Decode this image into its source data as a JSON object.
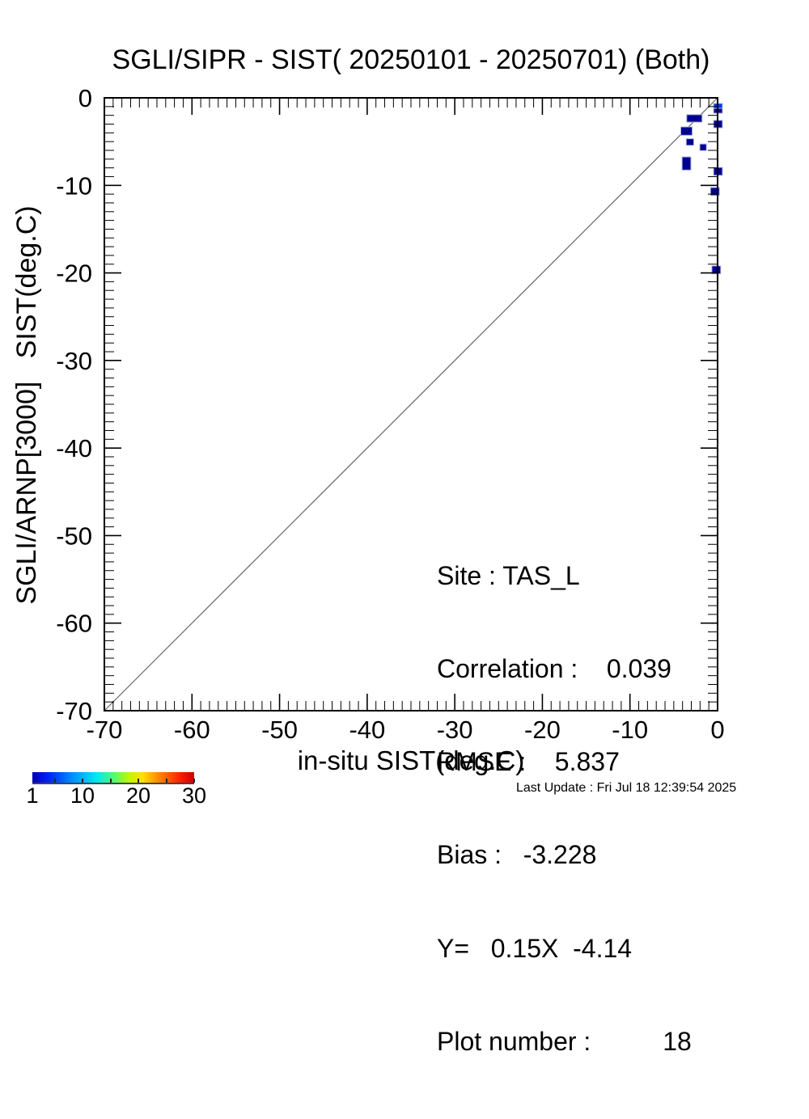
{
  "chart_data": {
    "type": "scatter",
    "title": "SGLI/SIPR - SIST( 20250101 - 20250701) (Both)",
    "xlabel": "in-situ SIST(deg.C)",
    "ylabel": "SGLI/ARNP[3000]   SIST(deg.C)",
    "xlim": [
      -70,
      0
    ],
    "ylim": [
      -70,
      0
    ],
    "x_ticks": [
      -70,
      -60,
      -50,
      -40,
      -30,
      -20,
      -10,
      0
    ],
    "y_ticks": [
      0,
      -10,
      -20,
      -30,
      -40,
      -50,
      -60,
      -70
    ],
    "minor_tick_step": 1,
    "grid": false,
    "identity_line": true,
    "point_colors": {
      "c1": "#000090",
      "high": "#0033f0"
    },
    "points": [
      {
        "x": 0.05,
        "y": -0.92,
        "w": 1.0,
        "h": 0.55,
        "c": "high"
      },
      {
        "x": 0.05,
        "y": -1.48,
        "w": 1.0,
        "h": 0.55,
        "c": "c1"
      },
      {
        "x": -2.65,
        "y": -2.35,
        "w": 1.75,
        "h": 0.85,
        "c": "c1"
      },
      {
        "x": 0.05,
        "y": -3.0,
        "w": 1.0,
        "h": 0.85,
        "c": "c1"
      },
      {
        "x": -3.55,
        "y": -3.8,
        "w": 1.3,
        "h": 0.95,
        "c": "c1"
      },
      {
        "x": -3.15,
        "y": -5.05,
        "w": 0.85,
        "h": 0.75,
        "c": "c1"
      },
      {
        "x": -1.65,
        "y": -5.65,
        "w": 0.75,
        "h": 0.75,
        "c": "c1"
      },
      {
        "x": -3.55,
        "y": -7.5,
        "w": 1.0,
        "h": 1.5,
        "c": "c1"
      },
      {
        "x": 0.05,
        "y": -8.4,
        "w": 1.0,
        "h": 0.9,
        "c": "c1"
      },
      {
        "x": -0.3,
        "y": -10.7,
        "w": 1.0,
        "h": 0.9,
        "c": "c1"
      },
      {
        "x": -0.15,
        "y": -19.65,
        "w": 1.0,
        "h": 0.9,
        "c": "c1"
      }
    ],
    "stats": {
      "site": "TAS_L",
      "correlation": 0.039,
      "rmse": 5.837,
      "bias": -3.228,
      "fit_slope": 0.15,
      "fit_intercept": -4.14,
      "plot_number": 18
    },
    "stats_lines": [
      "Site : TAS_L",
      "Correlation :    0.039",
      "RMSE :    5.837",
      "Bias :   -3.228",
      "Y=   0.15X  -4.14",
      "Plot number :          18"
    ],
    "colorbar": {
      "min": 1,
      "max": 30,
      "tick_values": [
        1,
        10,
        20,
        30
      ],
      "tick_labels": [
        "1",
        "10",
        "20",
        "30"
      ],
      "minor_ticks": [
        5,
        10,
        15,
        20,
        25,
        30
      ],
      "gradient": [
        {
          "pos": 0,
          "color": "#0000b0"
        },
        {
          "pos": 10,
          "color": "#0020ff"
        },
        {
          "pos": 25,
          "color": "#0090ff"
        },
        {
          "pos": 40,
          "color": "#00eaf0"
        },
        {
          "pos": 50,
          "color": "#50f878"
        },
        {
          "pos": 60,
          "color": "#c0f800"
        },
        {
          "pos": 68,
          "color": "#ffe000"
        },
        {
          "pos": 80,
          "color": "#ff7800"
        },
        {
          "pos": 91,
          "color": "#ff2000"
        },
        {
          "pos": 100,
          "color": "#c80000"
        }
      ]
    },
    "footer": "Last Update : Fri Jul 18 12:39:54 2025"
  }
}
